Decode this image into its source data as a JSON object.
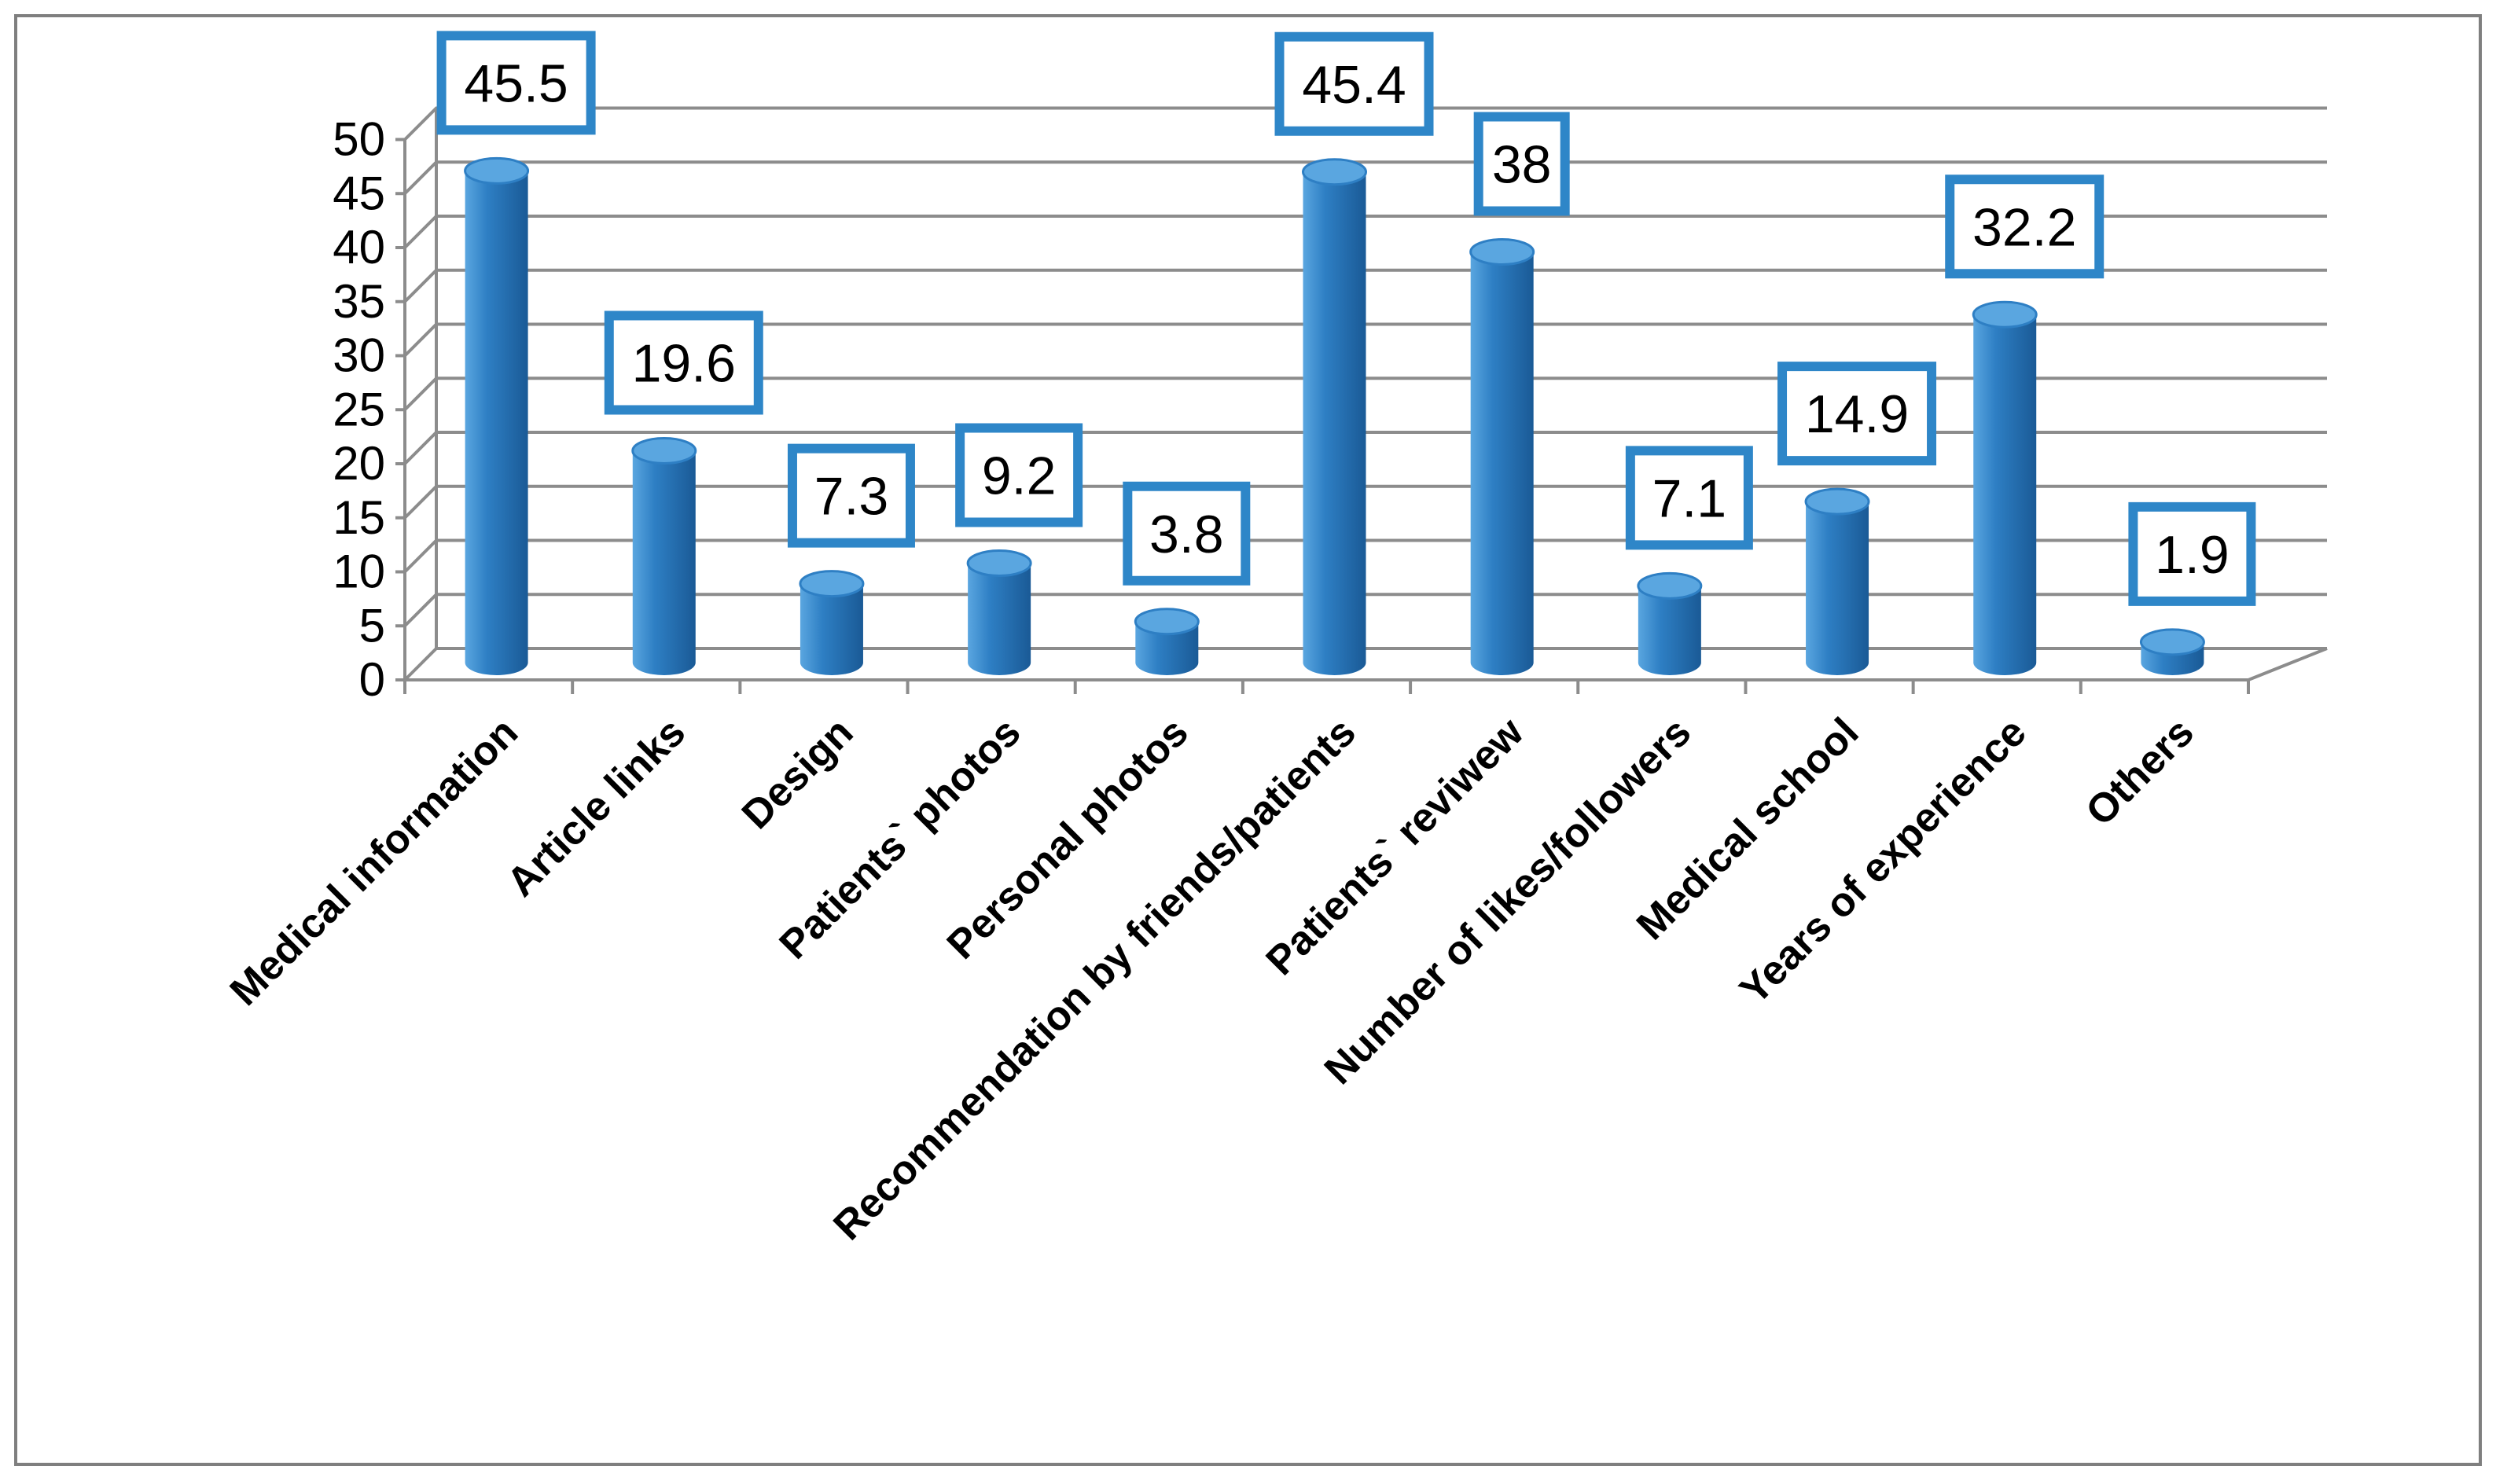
{
  "chart_data": {
    "type": "bar",
    "style": "3d-cylinder",
    "categories": [
      "Medical information",
      "Article links",
      "Design",
      "Patients` photos",
      "Personal photos",
      "Recommendation by friends/patients",
      "Patients` reviwew",
      "Number of likes/followers",
      "Medical school",
      "Years of experience",
      "Others"
    ],
    "values": [
      45.5,
      19.6,
      7.3,
      9.2,
      3.8,
      45.4,
      38,
      7.1,
      14.9,
      32.2,
      1.9
    ],
    "data_labels": [
      "45.5",
      "19.6",
      "7.3",
      "9.2",
      "3.8",
      "45.4",
      "38",
      "7.1",
      "14.9",
      "32.2",
      "1.9"
    ],
    "yticks": [
      "0",
      "5",
      "10",
      "15",
      "20",
      "25",
      "30",
      "35",
      "40",
      "45",
      "50"
    ],
    "ylim": [
      0,
      50
    ],
    "grid": true,
    "legend": "none",
    "colors": {
      "bar": "#2e7fc4",
      "bar_dark": "#1a5a96",
      "bar_light": "#5aa6e0",
      "label_border": "#2e86c8"
    }
  }
}
